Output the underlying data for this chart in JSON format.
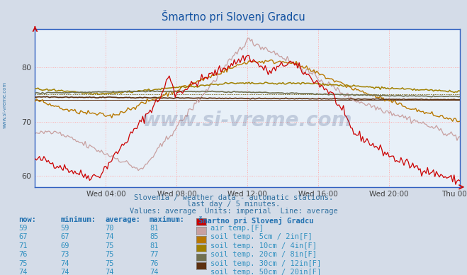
{
  "title": "Šmartno pri Slovenj Gradcu",
  "background_color": "#d4dce8",
  "plot_bg_color": "#e8f0f8",
  "grid_color": "#ffaaaa",
  "xlabel": "",
  "ylabel": "",
  "ylim": [
    58,
    87
  ],
  "yticks": [
    60,
    70,
    80
  ],
  "xticklabels": [
    "Wed 04:00",
    "Wed 08:00",
    "Wed 12:00",
    "Wed 16:00",
    "Wed 20:00",
    "Thu 00:00"
  ],
  "subtitle_lines": [
    "Slovenia / weather data - automatic stations.",
    "last day / 5 minutes.",
    "Values: average  Units: imperial  Line: average"
  ],
  "watermark": "www.si-vreme.com",
  "series_colors": [
    "#cc0000",
    "#c8a0a0",
    "#b87800",
    "#a08000",
    "#707050",
    "#5c3010"
  ],
  "series_labels": [
    "air temp.[F]",
    "soil temp. 5cm / 2in[F]",
    "soil temp. 10cm / 4in[F]",
    "soil temp. 20cm / 8in[F]",
    "soil temp. 30cm / 12in[F]",
    "soil temp. 50cm / 20in[F]"
  ],
  "table_header_color": "#2070b0",
  "table_text_color": "#3090c0",
  "series_nows": [
    59,
    67,
    71,
    76,
    75,
    74
  ],
  "series_mins": [
    59,
    67,
    69,
    73,
    74,
    74
  ],
  "series_avgs": [
    70,
    74,
    75,
    75,
    75,
    74
  ],
  "series_maxs": [
    81,
    85,
    81,
    77,
    76,
    74
  ],
  "watermark_color": "#203870"
}
